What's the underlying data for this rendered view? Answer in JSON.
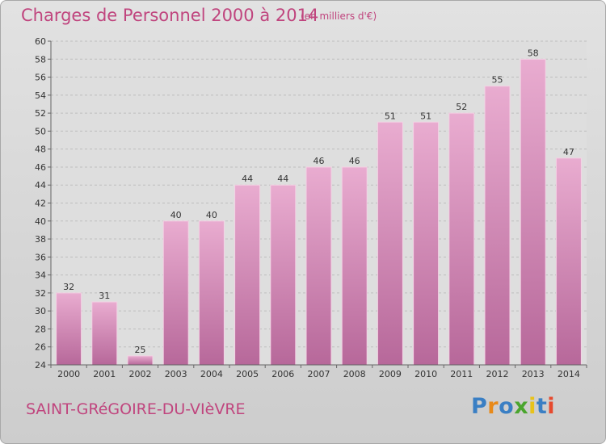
{
  "header": {
    "title": "Charges de Personnel 2000 à 2014",
    "unit": "(en milliers d'€)"
  },
  "footer": {
    "commune": "SAINT-GRéGOIRE-DU-VIèVRE",
    "logo_letters": [
      {
        "ch": "P",
        "color": "#3a7fc4"
      },
      {
        "ch": "r",
        "color": "#e88a1a"
      },
      {
        "ch": "o",
        "color": "#3a7fc4"
      },
      {
        "ch": "x",
        "color": "#4aa52e"
      },
      {
        "ch": "i",
        "color": "#e8c21a"
      },
      {
        "ch": "t",
        "color": "#3a7fc4"
      },
      {
        "ch": "i",
        "color": "#e64a2e"
      }
    ]
  },
  "colors": {
    "bar": "#d98ab7",
    "bar_light": "#e8a9cc",
    "bar_dark": "#b35f8f",
    "title": "#c0457e"
  },
  "chart_data": {
    "type": "bar",
    "categories": [
      "2000",
      "2001",
      "2002",
      "2003",
      "2004",
      "2005",
      "2006",
      "2007",
      "2008",
      "2009",
      "2010",
      "2011",
      "2012",
      "2013",
      "2014"
    ],
    "values": [
      32,
      31,
      25,
      40,
      40,
      44,
      44,
      46,
      46,
      51,
      51,
      52,
      55,
      58,
      47
    ],
    "ylim": [
      24,
      60
    ],
    "yticks": [
      24,
      26,
      28,
      30,
      32,
      34,
      36,
      38,
      40,
      42,
      44,
      46,
      48,
      50,
      52,
      54,
      56,
      58,
      60
    ],
    "grid": true,
    "title": "Charges de Personnel 2000 à 2014",
    "ylabel": "",
    "xlabel": ""
  }
}
